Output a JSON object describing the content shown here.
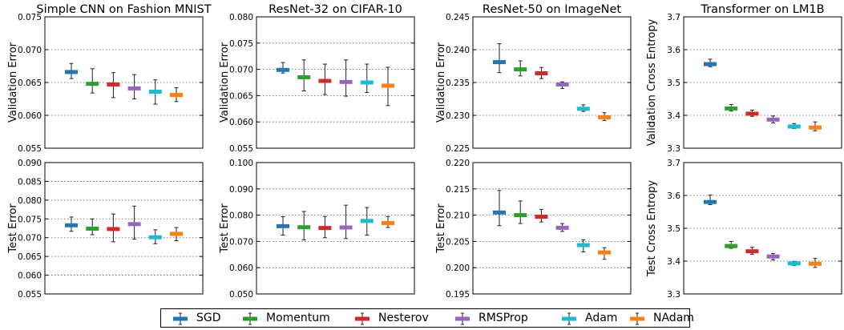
{
  "chart_data": [
    {
      "type": "scatter",
      "title": "Simple CNN on Fashion MNIST",
      "xlabel": "",
      "ylabel": "Validation Error",
      "ylim": [
        0.055,
        0.075
      ],
      "yticks": [
        "0.055",
        "0.060",
        "0.065",
        "0.070",
        "0.075"
      ],
      "points": [
        {
          "series": "SGD",
          "value": 0.0666,
          "lo": 0.0656,
          "hi": 0.0679
        },
        {
          "series": "Momentum",
          "value": 0.0648,
          "lo": 0.0634,
          "hi": 0.0671
        },
        {
          "series": "Nesterov",
          "value": 0.0647,
          "lo": 0.0627,
          "hi": 0.0665
        },
        {
          "series": "RMSProp",
          "value": 0.0641,
          "lo": 0.0625,
          "hi": 0.0662
        },
        {
          "series": "Adam",
          "value": 0.0636,
          "lo": 0.0617,
          "hi": 0.0654
        },
        {
          "series": "NAdam",
          "value": 0.0631,
          "lo": 0.0621,
          "hi": 0.0642
        }
      ]
    },
    {
      "type": "scatter",
      "title": "ResNet-32 on CIFAR-10",
      "xlabel": "",
      "ylabel": "Validation Error",
      "ylim": [
        0.055,
        0.08
      ],
      "yticks": [
        "0.055",
        "0.060",
        "0.065",
        "0.070",
        "0.075",
        "0.080"
      ],
      "points": [
        {
          "series": "SGD",
          "value": 0.0699,
          "lo": 0.0693,
          "hi": 0.0713
        },
        {
          "series": "Momentum",
          "value": 0.0685,
          "lo": 0.0659,
          "hi": 0.0718
        },
        {
          "series": "Nesterov",
          "value": 0.0678,
          "lo": 0.0652,
          "hi": 0.071
        },
        {
          "series": "RMSProp",
          "value": 0.0676,
          "lo": 0.0649,
          "hi": 0.0718
        },
        {
          "series": "Adam",
          "value": 0.0675,
          "lo": 0.0656,
          "hi": 0.071
        },
        {
          "series": "NAdam",
          "value": 0.0669,
          "lo": 0.0631,
          "hi": 0.0704
        }
      ]
    },
    {
      "type": "scatter",
      "title": "ResNet-50 on ImageNet",
      "xlabel": "",
      "ylabel": "Validation Error",
      "ylim": [
        0.225,
        0.245
      ],
      "yticks": [
        "0.225",
        "0.230",
        "0.235",
        "0.240",
        "0.245"
      ],
      "points": [
        {
          "series": "SGD",
          "value": 0.2381,
          "lo": 0.2365,
          "hi": 0.2409
        },
        {
          "series": "Momentum",
          "value": 0.237,
          "lo": 0.236,
          "hi": 0.2383
        },
        {
          "series": "Nesterov",
          "value": 0.2364,
          "lo": 0.2356,
          "hi": 0.2373
        },
        {
          "series": "RMSProp",
          "value": 0.2347,
          "lo": 0.2341,
          "hi": 0.2351
        },
        {
          "series": "Adam",
          "value": 0.231,
          "lo": 0.2306,
          "hi": 0.2316
        },
        {
          "series": "NAdam",
          "value": 0.2297,
          "lo": 0.2292,
          "hi": 0.2304
        }
      ]
    },
    {
      "type": "scatter",
      "title": "Transformer on LM1B",
      "xlabel": "",
      "ylabel": "Validation Cross Entropy",
      "ylim": [
        3.3,
        3.7
      ],
      "yticks": [
        "3.3",
        "3.4",
        "3.5",
        "3.6",
        "3.7"
      ],
      "points": [
        {
          "series": "SGD",
          "value": 3.556,
          "lo": 3.548,
          "hi": 3.571
        },
        {
          "series": "Momentum",
          "value": 3.421,
          "lo": 3.413,
          "hi": 3.433
        },
        {
          "series": "Nesterov",
          "value": 3.405,
          "lo": 3.397,
          "hi": 3.416
        },
        {
          "series": "RMSProp",
          "value": 3.387,
          "lo": 3.377,
          "hi": 3.398
        },
        {
          "series": "Adam",
          "value": 3.366,
          "lo": 3.36,
          "hi": 3.375
        },
        {
          "series": "NAdam",
          "value": 3.363,
          "lo": 3.353,
          "hi": 3.38
        }
      ]
    },
    {
      "type": "scatter",
      "title": "",
      "xlabel": "",
      "ylabel": "Test Error",
      "ylim": [
        0.055,
        0.09
      ],
      "yticks": [
        "0.055",
        "0.060",
        "0.065",
        "0.070",
        "0.075",
        "0.080",
        "0.085",
        "0.090"
      ],
      "points": [
        {
          "series": "SGD",
          "value": 0.0733,
          "lo": 0.0717,
          "hi": 0.0755
        },
        {
          "series": "Momentum",
          "value": 0.0724,
          "lo": 0.0708,
          "hi": 0.075
        },
        {
          "series": "Nesterov",
          "value": 0.0723,
          "lo": 0.0689,
          "hi": 0.0763
        },
        {
          "series": "RMSProp",
          "value": 0.0736,
          "lo": 0.0696,
          "hi": 0.0784
        },
        {
          "series": "Adam",
          "value": 0.0701,
          "lo": 0.0684,
          "hi": 0.0721
        },
        {
          "series": "NAdam",
          "value": 0.071,
          "lo": 0.0692,
          "hi": 0.0727
        }
      ]
    },
    {
      "type": "scatter",
      "title": "",
      "xlabel": "",
      "ylabel": "Test Error",
      "ylim": [
        0.05,
        0.1
      ],
      "yticks": [
        "0.050",
        "0.060",
        "0.070",
        "0.080",
        "0.090",
        "0.100"
      ],
      "points": [
        {
          "series": "SGD",
          "value": 0.0758,
          "lo": 0.0724,
          "hi": 0.0794
        },
        {
          "series": "Momentum",
          "value": 0.0754,
          "lo": 0.0706,
          "hi": 0.0814
        },
        {
          "series": "Nesterov",
          "value": 0.0751,
          "lo": 0.0714,
          "hi": 0.0795
        },
        {
          "series": "RMSProp",
          "value": 0.0753,
          "lo": 0.0711,
          "hi": 0.0838
        },
        {
          "series": "Adam",
          "value": 0.0778,
          "lo": 0.0724,
          "hi": 0.0829
        },
        {
          "series": "NAdam",
          "value": 0.077,
          "lo": 0.0753,
          "hi": 0.0795
        }
      ]
    },
    {
      "type": "scatter",
      "title": "",
      "xlabel": "",
      "ylabel": "Test Error",
      "ylim": [
        0.195,
        0.22
      ],
      "yticks": [
        "0.195",
        "0.200",
        "0.205",
        "0.210",
        "0.215",
        "0.220"
      ],
      "points": [
        {
          "series": "SGD",
          "value": 0.2105,
          "lo": 0.208,
          "hi": 0.2147
        },
        {
          "series": "Momentum",
          "value": 0.21,
          "lo": 0.2084,
          "hi": 0.2127
        },
        {
          "series": "Nesterov",
          "value": 0.2097,
          "lo": 0.2087,
          "hi": 0.2111
        },
        {
          "series": "RMSProp",
          "value": 0.2076,
          "lo": 0.2069,
          "hi": 0.2084
        },
        {
          "series": "Adam",
          "value": 0.2043,
          "lo": 0.203,
          "hi": 0.2053
        },
        {
          "series": "NAdam",
          "value": 0.2029,
          "lo": 0.2016,
          "hi": 0.2038
        }
      ]
    },
    {
      "type": "scatter",
      "title": "",
      "xlabel": "",
      "ylabel": "Test Cross Entropy",
      "ylim": [
        3.3,
        3.7
      ],
      "yticks": [
        "3.3",
        "3.4",
        "3.5",
        "3.6",
        "3.7"
      ],
      "points": [
        {
          "series": "SGD",
          "value": 3.58,
          "lo": 3.572,
          "hi": 3.601
        },
        {
          "series": "Momentum",
          "value": 3.446,
          "lo": 3.439,
          "hi": 3.46
        },
        {
          "series": "Nesterov",
          "value": 3.43,
          "lo": 3.421,
          "hi": 3.442
        },
        {
          "series": "RMSProp",
          "value": 3.414,
          "lo": 3.404,
          "hi": 3.423
        },
        {
          "series": "Adam",
          "value": 3.393,
          "lo": 3.387,
          "hi": 3.399
        },
        {
          "series": "NAdam",
          "value": 3.392,
          "lo": 3.381,
          "hi": 3.408
        }
      ]
    }
  ],
  "legend": {
    "placement": "bottom-center",
    "items": [
      {
        "label": "SGD",
        "color": "#1f77b4"
      },
      {
        "label": "Momentum",
        "color": "#2ca02c"
      },
      {
        "label": "Nesterov",
        "color": "#d62728"
      },
      {
        "label": "RMSProp",
        "color": "#9467bd"
      },
      {
        "label": "Adam",
        "color": "#17becf"
      },
      {
        "label": "NAdam",
        "color": "#ff7f0e"
      }
    ]
  },
  "style": {
    "grid": "horizontal-dotted",
    "errorbar_color": "#222222"
  }
}
